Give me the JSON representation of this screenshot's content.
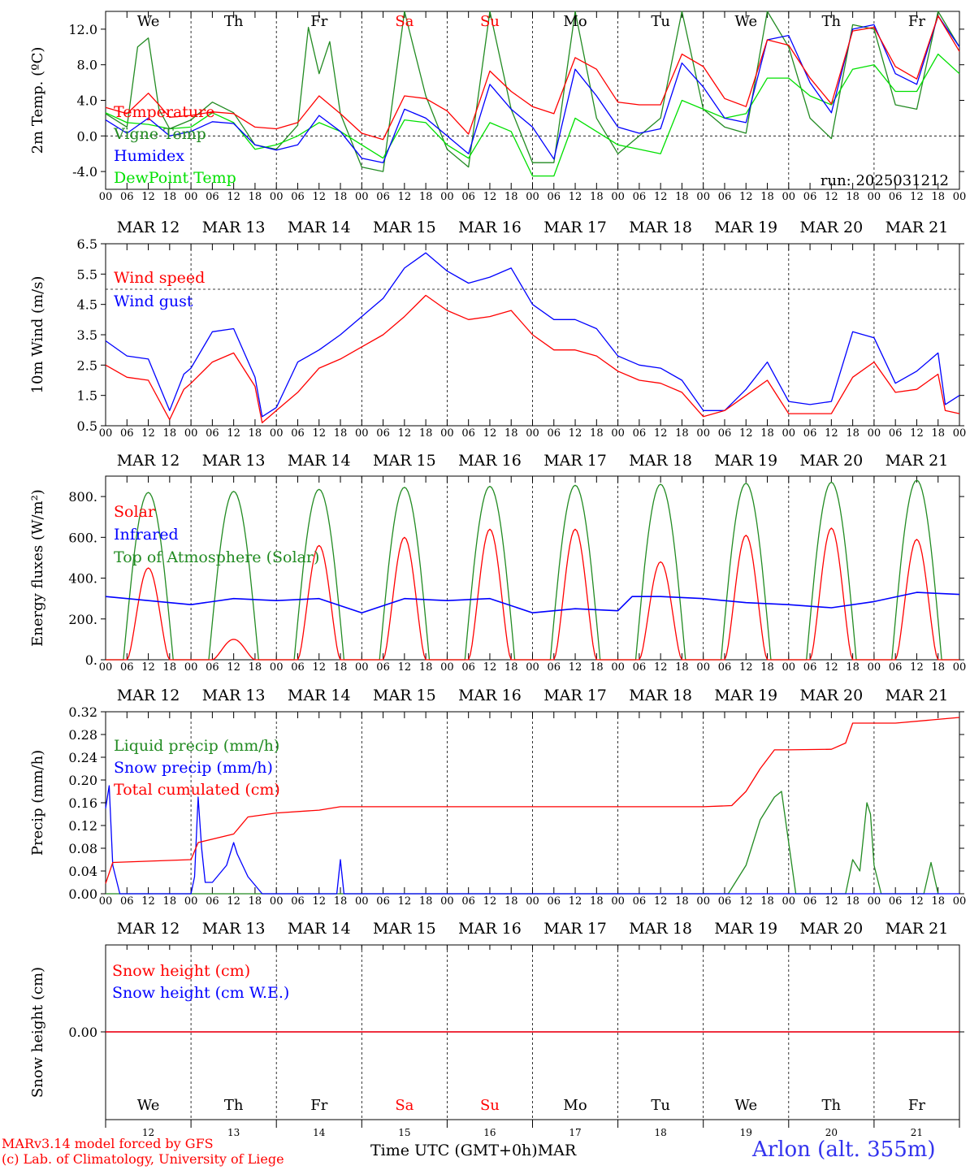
{
  "colors": {
    "red": "#ff0000",
    "green": "#228b22",
    "blue": "#0000ff",
    "light_green": "#00e000",
    "axis": "#000000"
  },
  "days": {
    "abbr": [
      "We",
      "Th",
      "Fr",
      "Sa",
      "Su",
      "Mo",
      "Tu",
      "We",
      "Th",
      "Fr"
    ],
    "weekend_index": [
      3,
      4
    ],
    "dates": [
      "MAR 12",
      "MAR 13",
      "MAR 14",
      "MAR 15",
      "MAR 16",
      "MAR 17",
      "MAR 18",
      "MAR 19",
      "MAR 20",
      "MAR 21"
    ],
    "day_numbers": [
      "12",
      "13",
      "14",
      "15",
      "16",
      "17",
      "18",
      "19",
      "20",
      "21"
    ],
    "hour_ticks": [
      "00",
      "06",
      "12",
      "18"
    ],
    "last_tick": "00"
  },
  "footer": {
    "model_line": "MARv3.14 model forced by GFS",
    "copyright_line": "(c) Lab. of Climatology, University of Liege",
    "x_axis_title": "Time UTC (GMT+0h)",
    "month": "MAR",
    "station": "Arlon (alt. 355m)"
  },
  "chart_data": [
    {
      "type": "line",
      "ylabel": "2m Temp. (ºC)",
      "ylim": [
        -6,
        14
      ],
      "yticks": [
        "-4.0",
        "0.0",
        "4.0",
        "8.0",
        "12.0"
      ],
      "ytick_values": [
        -4,
        0,
        4,
        8,
        12
      ],
      "reference_line": 0,
      "annotation": "run: 2025031212",
      "x_unit": "hours since MAR 12 00 UTC",
      "series": [
        {
          "name": "Temperature",
          "color": "red",
          "x": [
            0,
            6,
            12,
            15,
            18,
            24,
            30,
            36,
            42,
            48,
            54,
            60,
            66,
            72,
            78,
            84,
            90,
            96,
            102,
            108,
            114,
            120,
            126,
            132,
            138,
            144,
            150,
            156,
            162,
            168,
            174,
            180,
            186,
            192,
            198,
            204,
            210,
            216,
            222,
            228,
            234,
            240
          ],
          "y": [
            3.2,
            2.5,
            4.8,
            3.5,
            2.1,
            2.3,
            2.7,
            2.5,
            1.0,
            0.8,
            1.5,
            4.5,
            2.5,
            0.3,
            -0.4,
            4.5,
            4.2,
            2.8,
            0.2,
            7.3,
            5.0,
            3.3,
            2.5,
            8.8,
            7.5,
            3.8,
            3.5,
            3.5,
            9.2,
            7.8,
            4.2,
            3.3,
            10.8,
            10.2,
            6.5,
            3.6,
            11.8,
            12.2,
            7.8,
            6.4,
            13.5,
            9.5
          ]
        },
        {
          "name": "Vigne Temp",
          "color": "green",
          "x": [
            0,
            6,
            9,
            12,
            15,
            18,
            24,
            30,
            36,
            42,
            48,
            54,
            57,
            60,
            63,
            66,
            72,
            78,
            84,
            90,
            96,
            102,
            108,
            114,
            120,
            126,
            132,
            138,
            144,
            150,
            156,
            162,
            168,
            174,
            180,
            186,
            192,
            198,
            204,
            210,
            216,
            222,
            228,
            234,
            240
          ],
          "y": [
            2.5,
            1.0,
            10.0,
            11.0,
            3.0,
            0.8,
            1.8,
            3.8,
            2.6,
            -1.0,
            -1.5,
            1.2,
            12.2,
            7.0,
            10.6,
            2.5,
            -3.5,
            -4.0,
            16.0,
            4.5,
            -1.5,
            -3.5,
            17.0,
            3.0,
            -3.0,
            -3.0,
            18.0,
            2.0,
            -2.0,
            0.0,
            2.0,
            17.5,
            3.0,
            1.0,
            0.3,
            16.0,
            10.0,
            2.0,
            -0.3,
            12.5,
            12.0,
            3.5,
            3.0,
            14.0,
            10.0
          ]
        },
        {
          "name": "Humidex",
          "color": "blue",
          "x": [
            0,
            6,
            12,
            18,
            24,
            30,
            36,
            42,
            48,
            54,
            60,
            66,
            72,
            78,
            84,
            90,
            96,
            102,
            108,
            114,
            120,
            126,
            132,
            138,
            144,
            150,
            156,
            162,
            168,
            174,
            180,
            186,
            192,
            198,
            204,
            210,
            216,
            222,
            228,
            234,
            240
          ],
          "y": [
            1.8,
            0.3,
            2.0,
            0.0,
            0.5,
            1.6,
            1.4,
            -1.0,
            -1.6,
            -1.0,
            2.3,
            0.5,
            -2.5,
            -3.0,
            3.0,
            2.0,
            0.0,
            -2.0,
            5.8,
            3.0,
            1.0,
            -2.6,
            7.5,
            4.5,
            1.0,
            0.3,
            0.8,
            8.2,
            5.5,
            2.0,
            1.5,
            10.8,
            11.3,
            6.0,
            2.6,
            12.0,
            12.5,
            7.0,
            5.8,
            13.5,
            10.0
          ]
        },
        {
          "name": "DewPoint Temp",
          "color": "light_green",
          "x": [
            0,
            6,
            12,
            18,
            24,
            30,
            36,
            42,
            48,
            54,
            60,
            66,
            72,
            78,
            84,
            90,
            96,
            102,
            108,
            114,
            120,
            126,
            132,
            138,
            144,
            150,
            156,
            162,
            168,
            174,
            180,
            186,
            192,
            198,
            204,
            210,
            216,
            222,
            228,
            234,
            240
          ],
          "y": [
            2.6,
            1.5,
            1.3,
            0.8,
            1.0,
            2.6,
            1.5,
            -1.5,
            -1.0,
            0.0,
            1.5,
            0.5,
            -1.0,
            -2.5,
            1.8,
            1.5,
            -1.0,
            -2.5,
            1.5,
            0.5,
            -4.5,
            -4.5,
            2.0,
            0.5,
            -1.0,
            -1.5,
            -2.0,
            4.0,
            3.0,
            2.0,
            2.5,
            6.5,
            6.5,
            4.5,
            3.5,
            7.5,
            8.0,
            5.0,
            5.0,
            9.2,
            7.0
          ]
        }
      ]
    },
    {
      "type": "line",
      "ylabel": "10m Wind (m/s)",
      "ylim": [
        0.5,
        6.5
      ],
      "yticks": [
        "0.5",
        "1.5",
        "2.5",
        "3.5",
        "4.5",
        "5.5",
        "6.5"
      ],
      "ytick_values": [
        0.5,
        1.5,
        2.5,
        3.5,
        4.5,
        5.5,
        6.5
      ],
      "reference_line": 5.0,
      "x_unit": "hours since MAR 12 00 UTC",
      "series": [
        {
          "name": "Wind speed",
          "color": "red",
          "x": [
            0,
            6,
            12,
            18,
            22,
            24,
            30,
            36,
            42,
            44,
            48,
            54,
            60,
            66,
            72,
            78,
            84,
            90,
            96,
            102,
            108,
            114,
            120,
            126,
            132,
            138,
            144,
            150,
            156,
            162,
            168,
            174,
            180,
            186,
            192,
            198,
            204,
            210,
            216,
            222,
            228,
            234,
            236,
            240
          ],
          "y": [
            2.5,
            2.1,
            2.0,
            0.7,
            1.7,
            1.9,
            2.6,
            2.9,
            1.8,
            0.6,
            1.0,
            1.6,
            2.4,
            2.7,
            3.1,
            3.5,
            4.1,
            4.8,
            4.3,
            4.0,
            4.1,
            4.3,
            3.5,
            3.0,
            3.0,
            2.8,
            2.3,
            2.0,
            1.9,
            1.6,
            0.8,
            1.0,
            1.5,
            2.0,
            0.9,
            0.9,
            0.9,
            2.1,
            2.6,
            1.6,
            1.7,
            2.2,
            1.0,
            0.9
          ]
        },
        {
          "name": "Wind gust",
          "color": "blue",
          "x": [
            0,
            6,
            12,
            18,
            22,
            24,
            30,
            36,
            42,
            44,
            48,
            54,
            60,
            66,
            72,
            78,
            84,
            90,
            96,
            102,
            108,
            114,
            120,
            126,
            132,
            138,
            144,
            150,
            156,
            162,
            168,
            174,
            180,
            186,
            192,
            198,
            204,
            210,
            216,
            222,
            228,
            234,
            236,
            240
          ],
          "y": [
            3.3,
            2.8,
            2.7,
            1.0,
            2.2,
            2.4,
            3.6,
            3.7,
            2.1,
            0.8,
            1.1,
            2.6,
            3.0,
            3.5,
            4.1,
            4.7,
            5.7,
            6.2,
            5.6,
            5.2,
            5.4,
            5.7,
            4.5,
            4.0,
            4.0,
            3.7,
            2.8,
            2.5,
            2.4,
            2.0,
            1.0,
            1.0,
            1.7,
            2.6,
            1.3,
            1.2,
            1.3,
            3.6,
            3.4,
            1.9,
            2.3,
            2.9,
            1.2,
            1.5
          ]
        }
      ]
    },
    {
      "type": "line",
      "ylabel": "Energy fluxes (W/m²)",
      "ylim": [
        0,
        900
      ],
      "yticks": [
        "0.",
        "200.",
        "400.",
        "600.",
        "800."
      ],
      "ytick_values": [
        0,
        200,
        400,
        600,
        800
      ],
      "x_unit": "hours since MAR 12 00 UTC",
      "solar_window_hours": [
        5,
        19
      ],
      "series": [
        {
          "name": "Solar",
          "color": "red",
          "daily_peak": [
            450,
            100,
            560,
            600,
            640,
            640,
            480,
            610,
            645,
            590
          ]
        },
        {
          "name": "Infrared",
          "color": "blue",
          "x": [
            0,
            12,
            24,
            36,
            48,
            60,
            72,
            84,
            96,
            108,
            120,
            132,
            144,
            148,
            156,
            168,
            180,
            192,
            204,
            216,
            228,
            240
          ],
          "y": [
            310,
            290,
            270,
            300,
            290,
            300,
            230,
            300,
            290,
            300,
            230,
            250,
            240,
            310,
            310,
            300,
            280,
            270,
            255,
            285,
            330,
            320
          ]
        },
        {
          "name": "Top of Atmosphere (Solar)",
          "color": "green",
          "daily_peak": [
            820,
            825,
            835,
            845,
            850,
            855,
            860,
            865,
            870,
            880
          ]
        }
      ]
    },
    {
      "type": "line",
      "ylabel": "Precip (mm/h)",
      "ylim": [
        0,
        0.32
      ],
      "yticks": [
        "0.00",
        "0.04",
        "0.08",
        "0.12",
        "0.16",
        "0.20",
        "0.24",
        "0.28",
        "0.32"
      ],
      "ytick_values": [
        0,
        0.04,
        0.08,
        0.12,
        0.16,
        0.2,
        0.24,
        0.28,
        0.32
      ],
      "x_unit": "hours since MAR 12 00 UTC",
      "series": [
        {
          "name": "Liquid precip (mm/h)",
          "color": "green",
          "x": [
            0,
            175,
            180,
            184,
            186,
            188,
            190,
            194,
            208,
            210,
            211,
            212,
            213,
            214,
            215,
            216,
            218,
            230,
            232,
            234
          ],
          "y": [
            0,
            0,
            0.05,
            0.13,
            0.15,
            0.17,
            0.18,
            0,
            0,
            0.06,
            0.05,
            0.04,
            0.1,
            0.16,
            0.14,
            0.05,
            0,
            0,
            0.055,
            0
          ]
        },
        {
          "name": "Snow precip (mm/h)",
          "color": "blue",
          "x": [
            0,
            1,
            2,
            4,
            24,
            25,
            26,
            27,
            28,
            30,
            34,
            36,
            37,
            40,
            44,
            65,
            66,
            67,
            240
          ],
          "y": [
            0.15,
            0.19,
            0.05,
            0,
            0,
            0.03,
            0.17,
            0.08,
            0.02,
            0.02,
            0.05,
            0.09,
            0.07,
            0.03,
            0,
            0,
            0.06,
            0,
            0
          ]
        },
        {
          "name": "Total cumulated (cm)",
          "color": "red",
          "x": [
            0,
            2,
            24,
            26,
            36,
            40,
            48,
            60,
            66,
            72,
            96,
            120,
            144,
            168,
            176,
            180,
            184,
            188,
            192,
            204,
            208,
            210,
            222,
            240
          ],
          "y": [
            0.018,
            0.055,
            0.06,
            0.09,
            0.105,
            0.135,
            0.142,
            0.147,
            0.153,
            0.153,
            0.153,
            0.153,
            0.153,
            0.153,
            0.155,
            0.18,
            0.22,
            0.253,
            0.253,
            0.254,
            0.265,
            0.3,
            0.3,
            0.31
          ]
        }
      ]
    },
    {
      "type": "line",
      "ylabel": "Snow height (cm)",
      "yticks": [
        "0.00"
      ],
      "x_unit": "hours since MAR 12 00 UTC",
      "series": [
        {
          "name": "Snow height (cm)",
          "color": "red",
          "x": [
            0,
            240
          ],
          "y": [
            0,
            0
          ]
        },
        {
          "name": "Snow height (cm W.E.)",
          "color": "blue",
          "x": [
            0,
            240
          ],
          "y": [
            0,
            0
          ]
        }
      ]
    }
  ]
}
